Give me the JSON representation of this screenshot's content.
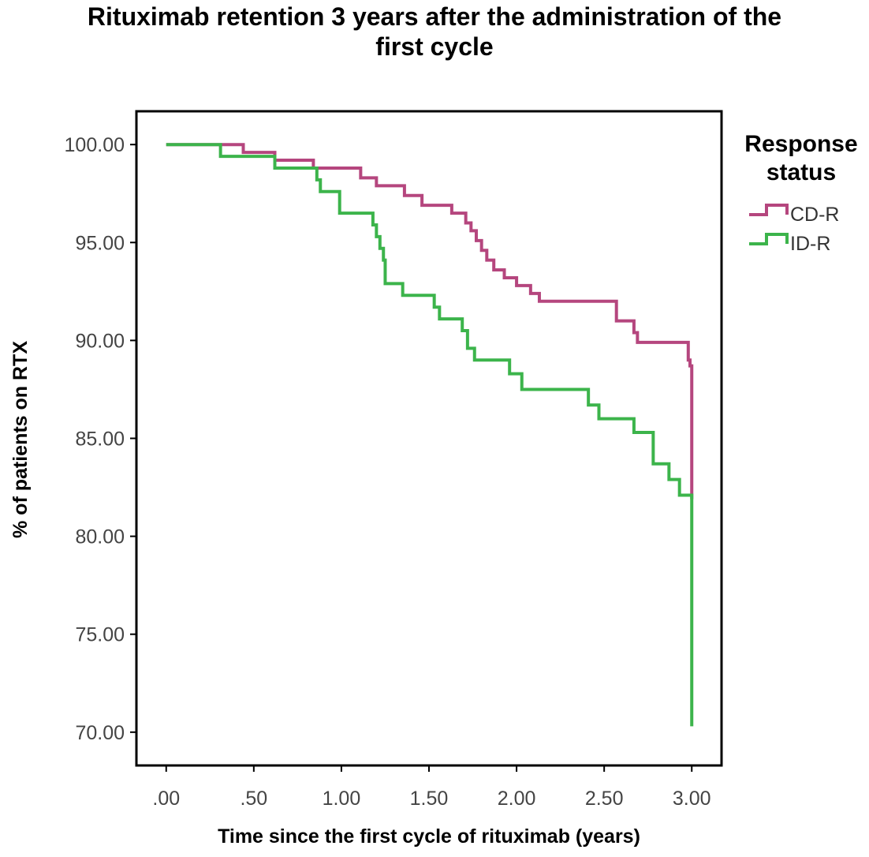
{
  "chart_data": {
    "type": "line",
    "title_lines": [
      "Rituximab retention 3 years after the administration of the",
      "first cycle"
    ],
    "xlabel": "Time since the first cycle of rituximab (years)",
    "ylabel": "% of patients on RTX",
    "xlim": [
      -0.17,
      3.17
    ],
    "ylim": [
      68.3,
      101.7
    ],
    "x_ticks": [
      0,
      0.5,
      1.0,
      1.5,
      2.0,
      2.5,
      3.0
    ],
    "x_tick_labels": [
      ".00",
      ".50",
      "1.00",
      "1.50",
      "2.00",
      "2.50",
      "3.00"
    ],
    "y_ticks": [
      100,
      95,
      90,
      85,
      80,
      75,
      70
    ],
    "y_tick_labels": [
      "100.00",
      "95.00",
      "90.00",
      "85.00",
      "80.00",
      "75.00",
      "70.00"
    ],
    "grid": false,
    "legend_position": "right",
    "legend_title_lines": [
      "Response",
      "status"
    ],
    "series": [
      {
        "name": "CD-R",
        "color": "#b5467e",
        "step": true,
        "x": [
          0,
          0.31,
          0.44,
          0.62,
          0.84,
          1.11,
          1.2,
          1.36,
          1.46,
          1.63,
          1.71,
          1.74,
          1.77,
          1.8,
          1.83,
          1.87,
          1.93,
          2.0,
          2.08,
          2.13,
          2.21,
          2.57,
          2.67,
          2.69,
          2.74,
          2.98,
          2.99,
          3.0,
          3.0
        ],
        "y": [
          100,
          100,
          99.6,
          99.2,
          98.8,
          98.3,
          97.9,
          97.4,
          96.9,
          96.5,
          96.0,
          95.6,
          95.1,
          94.6,
          94.1,
          93.6,
          93.2,
          92.8,
          92.4,
          92.0,
          92.0,
          91.0,
          90.4,
          89.9,
          89.9,
          89.0,
          88.7,
          81.9,
          81.9
        ]
      },
      {
        "name": "ID-R",
        "color": "#3cb44b",
        "step": true,
        "x": [
          0,
          0.31,
          0.62,
          0.86,
          0.88,
          0.9,
          0.99,
          1.03,
          1.18,
          1.2,
          1.22,
          1.24,
          1.25,
          1.35,
          1.53,
          1.56,
          1.69,
          1.72,
          1.76,
          1.96,
          2.03,
          2.41,
          2.47,
          2.67,
          2.78,
          2.87,
          2.93,
          3.0,
          3.0
        ],
        "y": [
          100,
          99.4,
          98.8,
          98.2,
          97.6,
          97.6,
          96.5,
          96.5,
          95.9,
          95.3,
          94.7,
          94.1,
          92.9,
          92.3,
          91.7,
          91.1,
          90.5,
          89.6,
          89.0,
          88.3,
          87.5,
          86.7,
          86.0,
          85.3,
          83.7,
          82.9,
          82.1,
          70.3,
          70.3
        ]
      }
    ]
  }
}
